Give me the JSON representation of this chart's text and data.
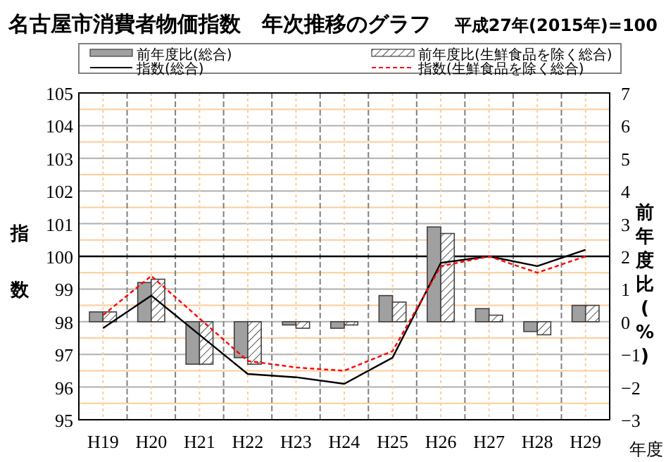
{
  "chart_data": {
    "type": "bar",
    "title": "名古屋市消費者物価指数　年次推移のグラフ",
    "subtitle": "平成27年(2015年)=100",
    "ylabel": "指数",
    "y2label": "前年度比(%)",
    "xlabel": "年度",
    "categories": [
      "H19",
      "H20",
      "H21",
      "H22",
      "H23",
      "H24",
      "H25",
      "H26",
      "H27",
      "H28",
      "H29"
    ],
    "series": [
      {
        "name": "前年度比(総合)",
        "axis": "y2",
        "color": "#a0a0a0",
        "values": [
          0.3,
          1.2,
          -1.3,
          -1.1,
          -0.1,
          -0.2,
          0.8,
          2.9,
          0.4,
          -0.3,
          0.5
        ]
      },
      {
        "name": "前年度比(生鮮食品を除く総合)",
        "axis": "y2",
        "color": "#ffffff",
        "values": [
          0.3,
          1.3,
          -1.3,
          -1.3,
          -0.2,
          -0.1,
          0.6,
          2.7,
          0.2,
          -0.4,
          0.5
        ]
      },
      {
        "name": "指数(総合)",
        "type": "line",
        "color": "#000000",
        "line_style": "solid",
        "values": [
          97.8,
          98.8,
          97.6,
          96.4,
          96.3,
          96.1,
          96.9,
          99.8,
          100.0,
          99.7,
          100.2
        ]
      },
      {
        "name": "指数(生鮮食品を除く総合)",
        "type": "line",
        "color": "#ff0000",
        "line_style": "dashed",
        "values": [
          98.2,
          99.4,
          98.1,
          96.8,
          96.6,
          96.5,
          97.1,
          99.7,
          100.0,
          99.5,
          100.0
        ]
      }
    ],
    "ylim": [
      95,
      105
    ],
    "yticks": [
      95,
      {
        "value": 95.5,
        "label": null
      },
      96,
      {
        "value": 96.5,
        "label": null
      },
      97,
      {
        "value": 97.5,
        "label": null
      },
      98,
      {
        "value": 98.5,
        "label": null
      },
      99,
      {
        "value": 99.5,
        "label": null
      },
      100,
      {
        "value": 100.5,
        "label": null
      },
      101,
      {
        "value": 101.5,
        "label": null
      },
      102,
      {
        "value": 102.5,
        "label": null
      },
      103,
      {
        "value": 103.5,
        "label": null
      },
      104,
      {
        "value": 104.5,
        "label": null
      },
      105
    ],
    "y2lim": [
      -3,
      7
    ],
    "y2ticks": [
      {
        "value": -3,
        "label": "−3"
      },
      {
        "value": -2,
        "label": "−2"
      },
      {
        "value": -1,
        "label": "−1"
      },
      0,
      1,
      2,
      3,
      4,
      5,
      6,
      7
    ],
    "ref_lines": [
      {
        "axis": "y",
        "value": 100,
        "color": "#000000"
      }
    ],
    "grid": true,
    "legend": "top"
  }
}
